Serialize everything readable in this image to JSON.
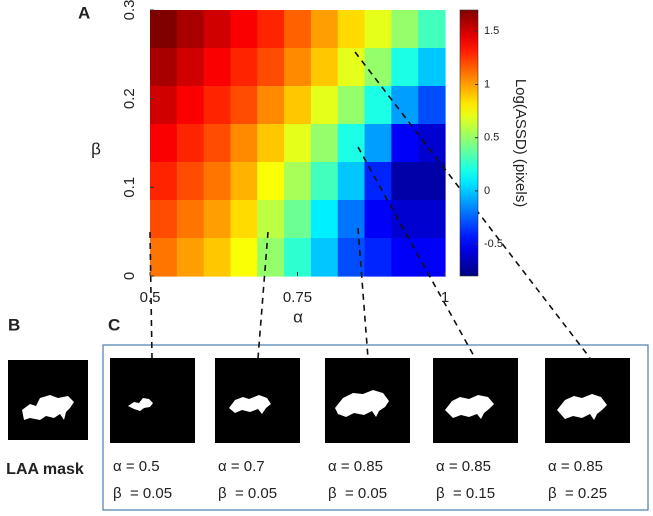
{
  "panel_labels": {
    "a": "A",
    "b": "B",
    "c": "C"
  },
  "chart_data": {
    "type": "heatmap",
    "xlabel": "α",
    "ylabel": "β",
    "x": [
      0.5,
      0.55,
      0.6,
      0.65,
      0.7,
      0.75,
      0.8,
      0.85,
      0.9,
      0.95,
      1
    ],
    "y": [
      0.3,
      0.25,
      0.2,
      0.15,
      0.1,
      0.05,
      0
    ],
    "values": [
      [
        1.7,
        1.6,
        1.5,
        1.4,
        1.3,
        1.15,
        1.0,
        0.85,
        0.7,
        0.5,
        0.3
      ],
      [
        1.6,
        1.5,
        1.4,
        1.3,
        1.2,
        1.05,
        0.9,
        0.7,
        0.5,
        0.2,
        0.0
      ],
      [
        1.5,
        1.4,
        1.3,
        1.2,
        1.05,
        0.9,
        0.7,
        0.5,
        0.2,
        -0.1,
        -0.3
      ],
      [
        1.4,
        1.3,
        1.2,
        1.05,
        0.9,
        0.7,
        0.5,
        0.2,
        -0.1,
        -0.5,
        -0.6
      ],
      [
        1.3,
        1.2,
        1.1,
        0.95,
        0.75,
        0.55,
        0.3,
        0.0,
        -0.4,
        -0.7,
        -0.7
      ],
      [
        1.2,
        1.1,
        1.0,
        0.85,
        0.6,
        0.4,
        0.1,
        -0.2,
        -0.5,
        -0.6,
        -0.6
      ],
      [
        1.1,
        1.0,
        0.9,
        0.75,
        0.5,
        0.25,
        0.0,
        -0.3,
        -0.4,
        -0.5,
        -0.5
      ]
    ],
    "xlim": [
      0.5,
      1
    ],
    "ylim": [
      0,
      0.3
    ],
    "xticks": [
      0.5,
      0.75,
      1
    ],
    "yticks": [
      0,
      0.1,
      0.2,
      0.3
    ],
    "colormap": "jet",
    "colorbar_label": "Log(ASSD) (pixels)",
    "clim": [
      -0.8,
      1.7
    ],
    "cticks": [
      -0.5,
      0,
      0.5,
      1,
      1.5
    ]
  },
  "mask_panel": {
    "label": "LAA mask"
  },
  "segmentations": [
    {
      "alpha": "α = 0.5",
      "beta": "β  = 0.05"
    },
    {
      "alpha": "α = 0.7",
      "beta": "β  = 0.05"
    },
    {
      "alpha": "α = 0.85",
      "beta": "β  = 0.05"
    },
    {
      "alpha": "α = 0.85",
      "beta": "β  = 0.15"
    },
    {
      "alpha": "α = 0.85",
      "beta": "β  = 0.25"
    }
  ]
}
